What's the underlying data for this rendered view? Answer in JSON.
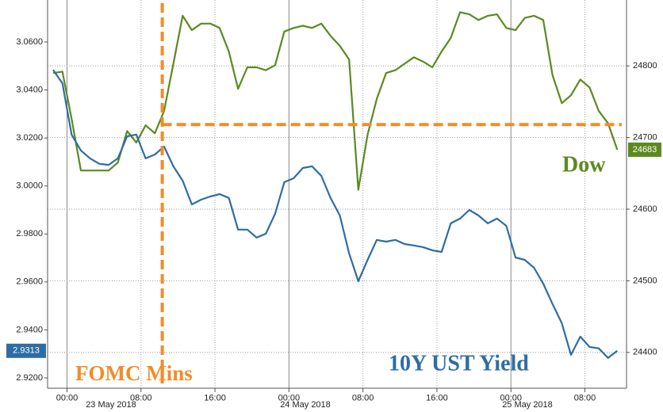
{
  "chart_data": {
    "type": "line",
    "annotation": "FOMC Mins",
    "x": [
      -1.5,
      -0.5,
      0.5,
      1.5,
      2.5,
      3.5,
      4.5,
      5.5,
      6.5,
      7.5,
      8.5,
      9.5,
      10.5,
      11.5,
      12.5,
      13.5,
      14.5,
      15.5,
      16.5,
      17.5,
      18.5,
      19.5,
      20.5,
      21.5,
      22.5,
      23.5,
      24.5,
      25.5,
      26.5,
      27.5,
      28.5,
      29.5,
      30.5,
      31.5,
      32.5,
      33.5,
      34.5,
      35.5,
      36.5,
      37.5,
      38.5,
      39.5,
      40.5,
      41.5,
      42.5,
      43.5,
      44.5,
      45.5,
      46.5,
      47.5,
      48.5,
      49.5,
      50.5,
      51.5,
      52.5,
      53.5,
      54.5,
      55.5,
      56.5,
      57.5,
      58.5,
      59.5
    ],
    "series": [
      {
        "name": "Dow",
        "color": "#5b8a1f",
        "axis": "y2",
        "values": [
          24790,
          24792,
          24726,
          24654,
          24654,
          24654,
          24654,
          24665,
          24709,
          24693,
          24717,
          24706,
          24737,
          24803,
          24870,
          24850,
          24859,
          24859,
          24853,
          24820,
          24768,
          24798,
          24798,
          24794,
          24801,
          24848,
          24853,
          24856,
          24853,
          24859,
          24842,
          24828,
          24809,
          24627,
          24704,
          24754,
          24790,
          24794,
          24803,
          24812,
          24806,
          24798,
          24820,
          24839,
          24875,
          24872,
          24864,
          24870,
          24872,
          24853,
          24850,
          24867,
          24870,
          24864,
          24787,
          24748,
          24759,
          24781,
          24770,
          24737,
          24720,
          24683
        ]
      },
      {
        "name": "10Y UST Yield",
        "color": "#2e6da4",
        "values": [
          3.0484,
          3.0428,
          3.0214,
          3.0148,
          3.0115,
          3.0092,
          3.0088,
          3.0115,
          3.0207,
          3.0214,
          3.0115,
          3.0131,
          3.0164,
          3.0082,
          3.0022,
          2.9923,
          2.9943,
          2.9956,
          2.9966,
          2.995,
          2.9818,
          2.9818,
          2.9785,
          2.9801,
          2.9884,
          3.0016,
          3.0032,
          3.0075,
          3.0082,
          3.0042,
          2.995,
          2.9877,
          2.9719,
          2.9603,
          2.9692,
          2.9775,
          2.9768,
          2.9775,
          2.9758,
          2.9752,
          2.9745,
          2.9732,
          2.9725,
          2.9844,
          2.9864,
          2.99,
          2.9877,
          2.9844,
          2.9864,
          2.9834,
          2.9702,
          2.9692,
          2.9659,
          2.9593,
          2.9508,
          2.9428,
          2.9296,
          2.9372,
          2.9329,
          2.9323,
          2.9283,
          2.9313
        ]
      }
    ],
    "xlim": [
      -2.1,
      60.5
    ],
    "xticks": [
      {
        "value": 0,
        "label": "00:00"
      },
      {
        "value": 8,
        "label": "08:00"
      },
      {
        "value": 16,
        "label": "16:00"
      },
      {
        "value": 24,
        "label": "00:00"
      },
      {
        "value": 32,
        "label": "08:00"
      },
      {
        "value": 40,
        "label": "16:00"
      },
      {
        "value": 48,
        "label": "00:00"
      },
      {
        "value": 56,
        "label": "08:00"
      }
    ],
    "x_dates": [
      "23 May 2018",
      "24 May 2018",
      "25 May 2018"
    ],
    "ylim": [
      2.9157,
      3.0775
    ],
    "yticks": [
      {
        "value": 2.92,
        "label": "2.9200"
      },
      {
        "value": 2.94,
        "label": "2.9400"
      },
      {
        "value": 2.96,
        "label": "2.9600"
      },
      {
        "value": 2.98,
        "label": "2.9800"
      },
      {
        "value": 3.0,
        "label": "3.0000"
      },
      {
        "value": 3.02,
        "label": "3.0200"
      },
      {
        "value": 3.04,
        "label": "3.0400"
      },
      {
        "value": 3.06,
        "label": "3.0600"
      }
    ],
    "y2lim": [
      24350,
      24892
    ],
    "y2ticks": [
      24400,
      24500,
      24600,
      24700,
      24800
    ],
    "grid": true,
    "reference_lines": {
      "x": 10.3,
      "y2": 24718,
      "color": "#f28c28"
    }
  }
}
